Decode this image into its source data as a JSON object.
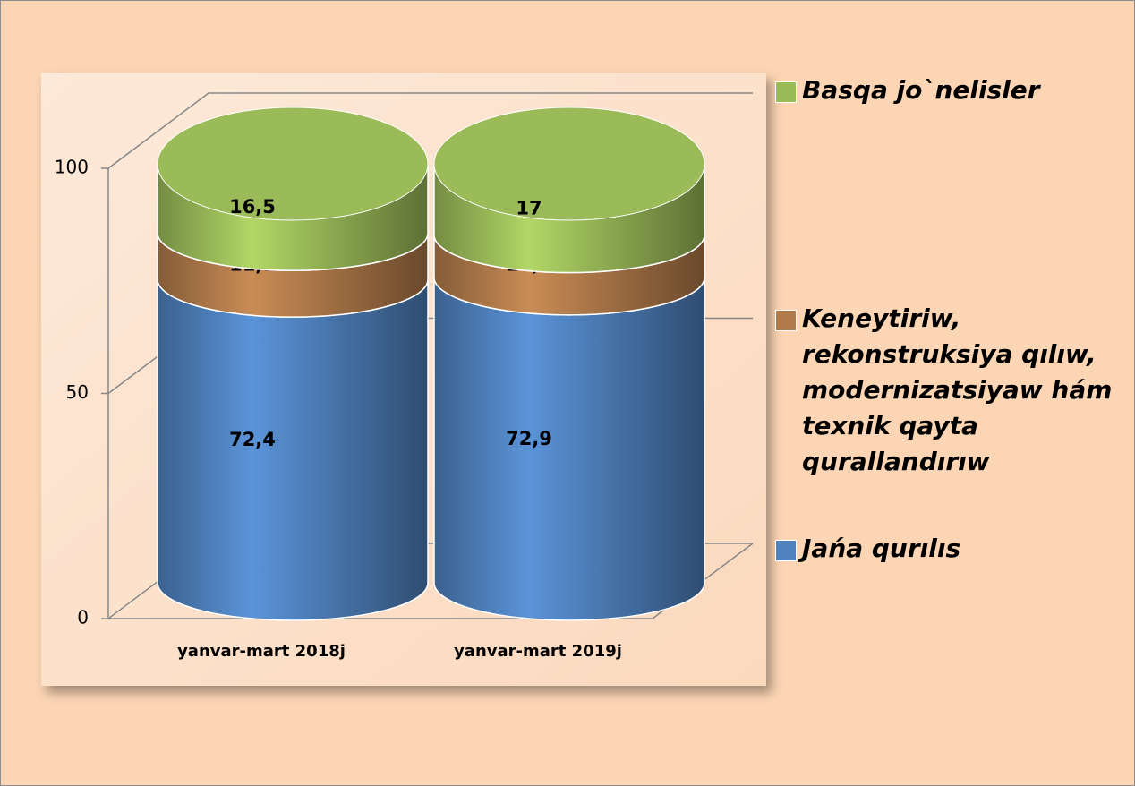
{
  "chart_data": {
    "type": "cylinder-stacked-bar",
    "categories": [
      "yanvar-mart 2018j",
      "yanvar-mart 2019j"
    ],
    "series": [
      {
        "name": "Jańa qurılıs",
        "color": "#4f81bd",
        "values": [
          72.4,
          72.9
        ],
        "value_labels": [
          "72,4",
          "72,9"
        ]
      },
      {
        "name": "Keneytiriw, rekonstruksiya qılıw, modernizatsiyaw hám texnik qayta qurallandırıw",
        "color": "#b07a4a",
        "values": [
          11.1,
          10.1
        ],
        "value_labels": [
          "11,1",
          "10,1"
        ]
      },
      {
        "name": "Basqa jo`nelisler",
        "color": "#9bbb59",
        "values": [
          16.5,
          17
        ],
        "value_labels": [
          "16,5",
          "17"
        ]
      }
    ],
    "ylim": [
      0,
      100
    ],
    "yticks": [
      0,
      50,
      100
    ],
    "grid": true,
    "legend": "right"
  }
}
